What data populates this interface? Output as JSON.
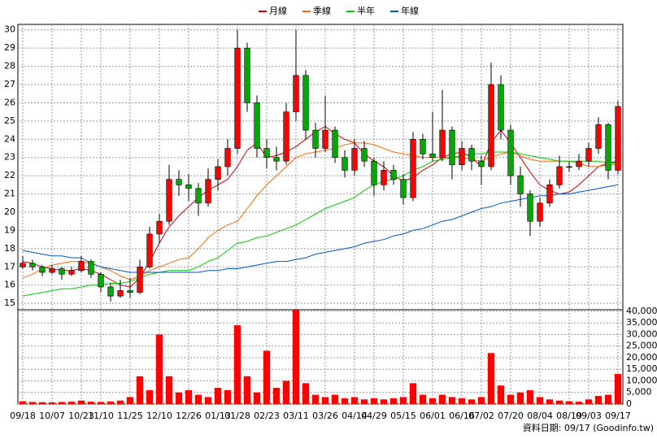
{
  "chart_data": {
    "type": "candlestick",
    "categories": [
      "09/18",
      null,
      null,
      "10/07",
      null,
      null,
      "10/23",
      null,
      "11/10",
      null,
      null,
      "11/25",
      null,
      null,
      "12/10",
      null,
      null,
      "12/26",
      null,
      null,
      "01/13",
      null,
      "01/28",
      null,
      null,
      "02/23",
      null,
      null,
      "03/11",
      null,
      null,
      "03/26",
      null,
      null,
      "04/14",
      null,
      "04/29",
      null,
      null,
      "05/15",
      null,
      null,
      "06/01",
      null,
      null,
      "06/16",
      null,
      "07/02",
      null,
      null,
      "07/20",
      null,
      null,
      "08/04",
      null,
      null,
      "08/19",
      null,
      "09/03",
      null,
      null,
      "09/17"
    ],
    "open": [
      17.0,
      17.2,
      17.0,
      16.7,
      16.9,
      16.6,
      16.8,
      17.3,
      16.6,
      15.9,
      15.4,
      15.7,
      15.6,
      17.0,
      18.8,
      19.5,
      21.8,
      21.5,
      21.3,
      20.5,
      21.8,
      22.5,
      23.5,
      29.0,
      26.0,
      23.5,
      23.0,
      22.8,
      25.5,
      27.5,
      24.5,
      23.5,
      24.5,
      23.0,
      22.3,
      23.5,
      22.8,
      21.5,
      22.3,
      21.8,
      20.8,
      24.0,
      23.2,
      23.0,
      24.5,
      22.6,
      23.5,
      22.8,
      22.5,
      27.0,
      24.5,
      22.0,
      21.0,
      19.5,
      20.5,
      21.5,
      22.5,
      22.5,
      22.8,
      23.5,
      24.8,
      22.3
    ],
    "high": [
      17.6,
      17.4,
      17.1,
      17.1,
      17.0,
      17.0,
      17.6,
      17.4,
      16.7,
      16.1,
      16.3,
      16.4,
      17.4,
      19.2,
      19.9,
      22.6,
      22.3,
      22.1,
      21.6,
      22.4,
      22.9,
      24.0,
      30.0,
      29.3,
      26.4,
      24.0,
      23.6,
      26.0,
      30.0,
      27.8,
      24.9,
      26.4,
      24.7,
      23.4,
      24.0,
      23.9,
      23.0,
      22.8,
      22.6,
      22.1,
      24.4,
      24.3,
      25.5,
      26.7,
      24.7,
      23.9,
      23.7,
      23.1,
      28.2,
      27.5,
      24.8,
      22.5,
      21.2,
      20.8,
      21.8,
      23.1,
      22.8,
      23.2,
      23.8,
      25.2,
      24.9,
      26.1
    ],
    "low": [
      16.9,
      16.8,
      16.5,
      16.6,
      16.3,
      16.5,
      16.7,
      16.4,
      15.6,
      15.1,
      15.3,
      15.3,
      15.5,
      16.9,
      18.3,
      19.3,
      20.9,
      20.6,
      19.8,
      20.3,
      21.2,
      22.0,
      23.2,
      25.5,
      23.0,
      22.4,
      22.3,
      22.6,
      25.0,
      24.0,
      23.0,
      23.3,
      22.7,
      21.9,
      22.0,
      22.5,
      20.9,
      21.2,
      21.5,
      20.4,
      20.6,
      22.9,
      22.8,
      22.8,
      21.8,
      22.3,
      22.3,
      21.5,
      22.3,
      24.0,
      21.5,
      20.3,
      18.7,
      19.2,
      20.3,
      21.3,
      22.2,
      22.3,
      22.5,
      23.2,
      21.8,
      22.1
    ],
    "close": [
      17.2,
      17.0,
      16.7,
      16.9,
      16.6,
      16.8,
      17.3,
      16.6,
      15.9,
      15.4,
      15.7,
      15.6,
      17.0,
      18.8,
      19.5,
      21.8,
      21.5,
      21.3,
      20.5,
      21.8,
      22.5,
      23.5,
      29.0,
      26.0,
      23.5,
      23.0,
      22.8,
      25.5,
      27.5,
      24.5,
      23.5,
      24.5,
      23.0,
      22.3,
      23.5,
      22.8,
      21.5,
      22.3,
      21.8,
      20.8,
      24.0,
      23.2,
      23.0,
      24.5,
      22.6,
      23.5,
      22.8,
      22.5,
      27.0,
      24.5,
      22.0,
      21.0,
      19.5,
      20.5,
      21.5,
      22.5,
      22.5,
      22.8,
      23.5,
      24.8,
      22.3,
      25.8
    ],
    "up_color": "#ff0000",
    "down_color": "#00aa00",
    "series": [
      {
        "name": "月線",
        "color": "#cc0000",
        "values": [
          17.3,
          17.2,
          17.0,
          16.9,
          16.8,
          16.8,
          16.9,
          16.8,
          16.6,
          16.3,
          16.0,
          15.9,
          16.4,
          17.3,
          18.3,
          19.2,
          19.8,
          20.3,
          20.8,
          21.2,
          21.5,
          21.8,
          22.5,
          23.4,
          23.8,
          23.0,
          23.1,
          23.3,
          23.6,
          24.0,
          24.4,
          24.7,
          24.3,
          24.0,
          23.8,
          23.2,
          22.8,
          22.5,
          22.0,
          21.7,
          21.9,
          22.3,
          22.6,
          23.0,
          23.2,
          23.3,
          23.0,
          22.5,
          23.8,
          24.5,
          23.8,
          23.0,
          22.2,
          21.5,
          21.2,
          21.0,
          21.1,
          21.5,
          22.0,
          22.5,
          22.7,
          22.8
        ]
      },
      {
        "name": "季線",
        "color": "#ff6600",
        "values": [
          16.4,
          16.6,
          16.9,
          17.1,
          17.2,
          17.3,
          17.3,
          17.2,
          17.0,
          16.8,
          16.5,
          16.3,
          16.5,
          16.8,
          17.0,
          17.2,
          17.4,
          17.5,
          18.0,
          18.6,
          19.0,
          19.3,
          19.5,
          20.2,
          20.9,
          21.5,
          22.0,
          22.5,
          23.0,
          23.2,
          23.3,
          23.4,
          23.5,
          23.7,
          23.8,
          23.8,
          23.7,
          23.5,
          23.3,
          23.2,
          23.1,
          23.0,
          23.0,
          23.0,
          23.0,
          23.0,
          22.9,
          22.8,
          23.0,
          23.2,
          23.3,
          23.1,
          22.9,
          22.8,
          22.8,
          22.8,
          22.8,
          22.7,
          22.5,
          22.5,
          22.6,
          22.6
        ]
      },
      {
        "name": "半年",
        "color": "#00cc00",
        "values": [
          15.4,
          15.5,
          15.6,
          15.7,
          15.8,
          15.8,
          15.9,
          16.0,
          16.0,
          16.1,
          16.1,
          16.2,
          16.4,
          16.6,
          16.7,
          16.8,
          16.8,
          16.8,
          17.0,
          17.3,
          17.5,
          17.9,
          18.3,
          18.4,
          18.6,
          18.7,
          18.9,
          19.1,
          19.3,
          19.6,
          19.9,
          20.2,
          20.4,
          20.6,
          20.8,
          21.2,
          21.5,
          21.7,
          21.8,
          22.0,
          22.3,
          22.5,
          22.8,
          22.9,
          23.0,
          23.1,
          23.2,
          23.2,
          23.3,
          23.3,
          23.3,
          23.2,
          23.1,
          23.0,
          22.9,
          22.8,
          22.8,
          22.8,
          22.8,
          22.8,
          22.7,
          22.7
        ]
      },
      {
        "name": "年線",
        "color": "#0055cc",
        "values": [
          17.9,
          17.8,
          17.7,
          17.6,
          17.6,
          17.5,
          17.5,
          17.2,
          17.0,
          16.9,
          16.8,
          16.7,
          16.7,
          16.7,
          16.7,
          16.7,
          16.7,
          16.7,
          16.7,
          16.8,
          16.8,
          16.9,
          16.9,
          17.0,
          17.1,
          17.2,
          17.3,
          17.3,
          17.4,
          17.5,
          17.7,
          17.8,
          17.9,
          18.0,
          18.1,
          18.3,
          18.4,
          18.5,
          18.7,
          18.8,
          19.0,
          19.1,
          19.3,
          19.5,
          19.6,
          19.8,
          20.0,
          20.2,
          20.3,
          20.5,
          20.6,
          20.7,
          20.8,
          20.9,
          20.9,
          21.0,
          21.0,
          21.1,
          21.2,
          21.3,
          21.4,
          21.5
        ]
      }
    ],
    "ylim": [
      14.65,
      30.3
    ],
    "yticks": [
      15,
      16,
      17,
      18,
      19,
      20,
      21,
      22,
      23,
      24,
      25,
      26,
      27,
      28,
      29,
      30
    ],
    "grid": true,
    "volume": {
      "color": "#ff0000",
      "values": [
        1200,
        900,
        800,
        700,
        900,
        1000,
        1500,
        1000,
        900,
        1100,
        1500,
        3000,
        12000,
        6000,
        30000,
        12000,
        5000,
        6000,
        4000,
        3000,
        7000,
        6000,
        34000,
        12000,
        5000,
        23000,
        7000,
        10000,
        40500,
        9000,
        4000,
        3000,
        4000,
        2500,
        3000,
        2000,
        2500,
        2000,
        2500,
        3000,
        9000,
        4000,
        2500,
        4000,
        3000,
        2500,
        2000,
        3000,
        22000,
        8000,
        4000,
        5000,
        6000,
        3000,
        2000,
        1500,
        1200,
        1000,
        2000,
        3500,
        4000,
        13000
      ],
      "ylim": [
        0,
        40700
      ],
      "yticks": [
        0,
        {
          "value": 5000,
          "label": "5,000"
        },
        {
          "value": 10000,
          "label": "10,000"
        },
        {
          "value": 15000,
          "label": "15,000"
        },
        {
          "value": 20000,
          "label": "20,000"
        },
        {
          "value": 25000,
          "label": "25,000"
        },
        {
          "value": 30000,
          "label": "30,000"
        },
        {
          "value": 35000,
          "label": "35,000"
        },
        {
          "value": 40000,
          "label": "40,000"
        }
      ]
    },
    "source": "資料日期: 09/17 (Goodinfo.tw)"
  }
}
